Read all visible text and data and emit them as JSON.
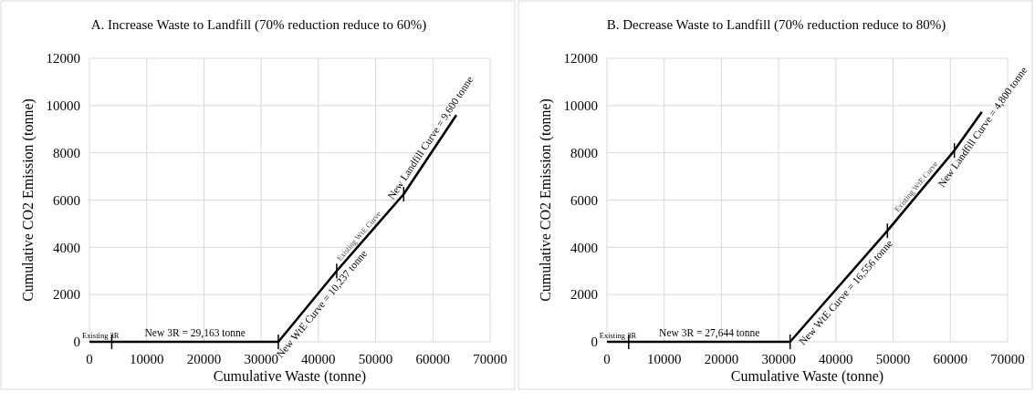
{
  "chart_data": [
    {
      "type": "line",
      "title": "A. Increase Waste to Landfill (70% reduction reduce to 60%)",
      "xlabel": "Cumulative Waste (tonne)",
      "ylabel": "Cumulative CO2 Emission (tonne)",
      "xlim": [
        0,
        70000
      ],
      "xticks": [
        0,
        10000,
        20000,
        30000,
        40000,
        50000,
        60000,
        70000
      ],
      "ylim": [
        0,
        12000
      ],
      "yticks": [
        0,
        2000,
        4000,
        6000,
        8000,
        10000,
        12000
      ],
      "grid": true,
      "line_style": "solid",
      "series": [
        {
          "color": "#000000",
          "x": [
            0,
            3900,
            33000,
            43200,
            54900,
            64100
          ],
          "values": [
            0,
            0,
            0,
            3000,
            6250,
            9600
          ]
        }
      ],
      "annotations": [
        "Existing 3R",
        "New 3R = 29,163 tonne",
        "New WtE Curve = 10,237 tonne",
        "Existing WtE Curve",
        "New Landfill Curve = 9,600 tonne"
      ]
    },
    {
      "type": "line",
      "title": "B. Decrease Waste to Landfill (70% reduction reduce to 80%)",
      "xlabel": "Cumulative Waste (tonne)",
      "ylabel": "Cumulative CO2 Emission (tonne)",
      "xlim": [
        0,
        70000
      ],
      "xticks": [
        0,
        10000,
        20000,
        30000,
        40000,
        50000,
        60000,
        70000
      ],
      "ylim": [
        0,
        12000
      ],
      "yticks": [
        0,
        2000,
        4000,
        6000,
        8000,
        10000,
        12000
      ],
      "grid": true,
      "line_style": "solid",
      "series": [
        {
          "color": "#000000",
          "x": [
            0,
            3800,
            32000,
            49000,
            60700,
            65500
          ],
          "values": [
            0,
            0,
            0,
            4700,
            8100,
            9730
          ]
        }
      ],
      "annotations": [
        "Existing 3R",
        "New 3R = 27,644 tonne",
        "New WtE Curve = 16,556 tonne",
        "Existing WtE Curve",
        "New Landfill Curve = 4,800 tonne"
      ]
    }
  ]
}
